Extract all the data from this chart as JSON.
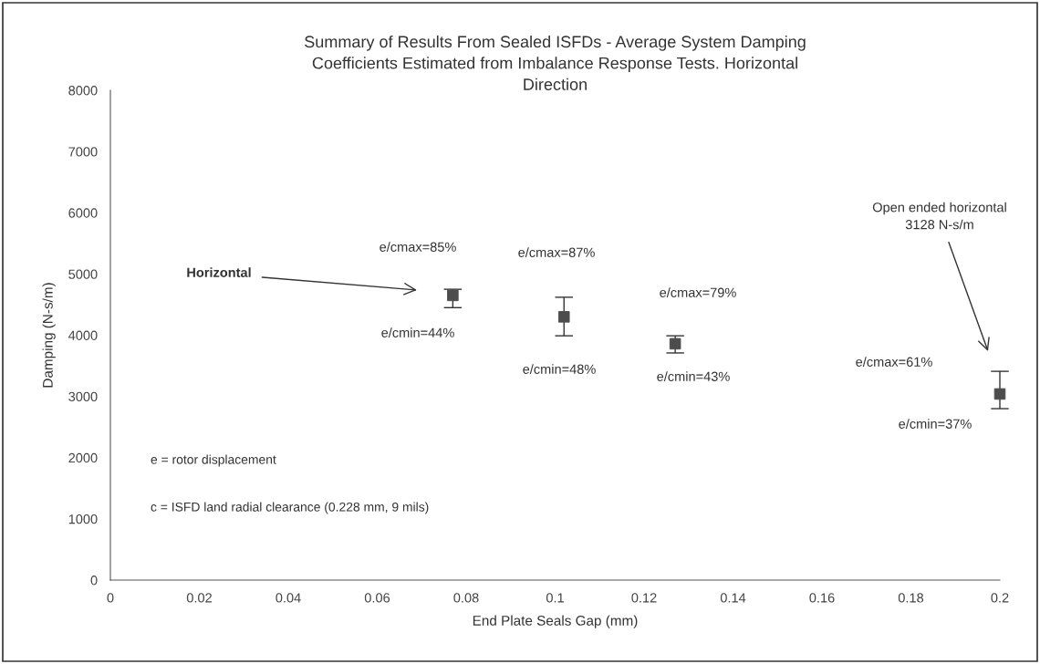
{
  "chart_data": {
    "type": "scatter",
    "title": "Summary of Results From Sealed ISFDs - Average System Damping\nCoefficients Estimated from Imbalance Response Tests. Horizontal\nDirection",
    "xlabel": "End Plate Seals Gap (mm)",
    "ylabel": "Damping (N-s/m)",
    "x": [
      0.077,
      0.102,
      0.127,
      0.2
    ],
    "values": [
      4650,
      4300,
      3860,
      3040
    ],
    "errors": [
      [
        4450,
        4750
      ],
      [
        3990,
        4620
      ],
      [
        3710,
        3990
      ],
      [
        2800,
        3410
      ]
    ],
    "color": "#4d4d4d",
    "marker": "square",
    "grid": false,
    "legend": false,
    "xlim": [
      0,
      0.2
    ],
    "xticks": [
      0,
      0.02,
      0.04,
      0.06,
      0.08,
      0.1,
      0.12,
      0.14,
      0.16,
      0.18,
      0.2
    ],
    "ylim": [
      0,
      8000
    ],
    "yticks": [
      0,
      1000,
      2000,
      3000,
      4000,
      5000,
      6000,
      7000,
      8000
    ],
    "annotations": [
      "e/cmax=85%",
      "e/cmin=44%",
      "Horizontal",
      "e/cmax=87%",
      "e/cmin=48%",
      "e/cmax=79%",
      "e/cmin=43%",
      "e/cmax=61%",
      "e/cmin=37%",
      "Open ended horizontal\n3128 N-s/m",
      "e = rotor displacement",
      "c = ISFD land radial clearance (0.228 mm, 9 mils)"
    ]
  }
}
